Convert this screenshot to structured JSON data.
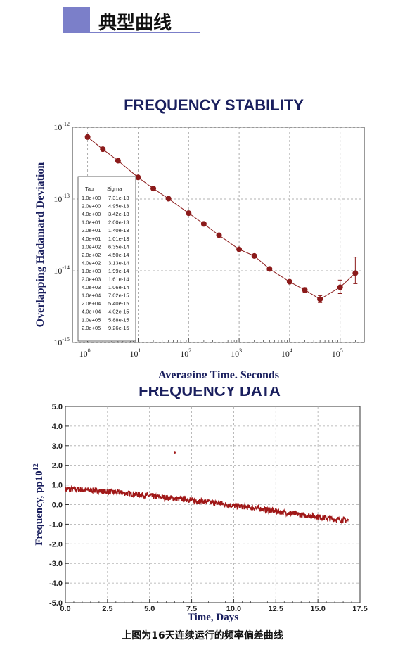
{
  "header": {
    "title": "典型曲线",
    "accent_color": "#7b7fc9"
  },
  "caption": "上图为16天连续运行的频率偏差曲线",
  "chart_data": [
    {
      "type": "scatter",
      "title": "FREQUENCY STABILITY",
      "xlabel": "Averaging Time, Seconds",
      "ylabel": "Overlapping Hadamard Deviation",
      "x_scale": "log",
      "y_scale": "log",
      "xlim": [
        0.5,
        300000
      ],
      "ylim": [
        1e-15,
        1e-12
      ],
      "x_ticks": [
        {
          "v": 1,
          "base": "10",
          "exp": "0"
        },
        {
          "v": 10,
          "base": "10",
          "exp": "1"
        },
        {
          "v": 100,
          "base": "10",
          "exp": "2"
        },
        {
          "v": 1000,
          "base": "10",
          "exp": "3"
        },
        {
          "v": 10000,
          "base": "10",
          "exp": "4"
        },
        {
          "v": 100000,
          "base": "10",
          "exp": "5"
        }
      ],
      "y_ticks": [
        {
          "v": 1e-12,
          "base": "10",
          "exp": "-12"
        },
        {
          "v": 1e-13,
          "base": "10",
          "exp": "-13"
        },
        {
          "v": 1e-14,
          "base": "10",
          "exp": "-14"
        },
        {
          "v": 1e-15,
          "base": "10",
          "exp": "-15"
        }
      ],
      "grid": "dashed at decades",
      "point_color": "#8b1a1a",
      "x": [
        1,
        2,
        4,
        10,
        20,
        40,
        100,
        200,
        400,
        1000,
        2000,
        4000,
        10000,
        20000,
        40000,
        100000,
        200000
      ],
      "y": [
        7.31e-13,
        4.95e-13,
        3.42e-13,
        2e-13,
        1.4e-13,
        1.01e-13,
        6.35e-14,
        4.5e-14,
        3.13e-14,
        1.99e-14,
        1.61e-14,
        1.06e-14,
        7.02e-15,
        5.4e-15,
        4.02e-15,
        5.88e-15,
        9.26e-15
      ],
      "error_low": [
        null,
        null,
        null,
        null,
        null,
        null,
        null,
        null,
        null,
        null,
        null,
        null,
        null,
        5e-15,
        3.6e-15,
        4.8e-15,
        6.6e-15
      ],
      "error_high": [
        null,
        null,
        null,
        null,
        null,
        null,
        null,
        null,
        null,
        null,
        null,
        null,
        null,
        5.8e-15,
        4.5e-15,
        7.4e-15,
        1.55e-14
      ],
      "table": {
        "headers": [
          "Tau",
          "Sigma"
        ],
        "rows": [
          [
            "1.0e+00",
            "7.31e-13"
          ],
          [
            "2.0e+00",
            "4.95e-13"
          ],
          [
            "4.0e+00",
            "3.42e-13"
          ],
          [
            "1.0e+01",
            "2.00e-13"
          ],
          [
            "2.0e+01",
            "1.40e-13"
          ],
          [
            "4.0e+01",
            "1.01e-13"
          ],
          [
            "1.0e+02",
            "6.35e-14"
          ],
          [
            "2.0e+02",
            "4.50e-14"
          ],
          [
            "4.0e+02",
            "3.13e-14"
          ],
          [
            "1.0e+03",
            "1.99e-14"
          ],
          [
            "2.0e+03",
            "1.61e-14"
          ],
          [
            "4.0e+03",
            "1.06e-14"
          ],
          [
            "1.0e+04",
            "7.02e-15"
          ],
          [
            "2.0e+04",
            "5.40e-15"
          ],
          [
            "4.0e+04",
            "4.02e-15"
          ],
          [
            "1.0e+05",
            "5.88e-15"
          ],
          [
            "2.0e+05",
            "9.26e-15"
          ]
        ]
      }
    },
    {
      "type": "line",
      "title": "FREQUENCY DATA",
      "xlabel": "Time, Days",
      "ylabel_main": "Frequency, pp10",
      "ylabel_sup": "12",
      "xlim": [
        0,
        17.5
      ],
      "ylim": [
        -5,
        5
      ],
      "x_ticks": [
        "0.0",
        "2.5",
        "5.0",
        "7.5",
        "10.0",
        "12.5",
        "15.0",
        "17.5"
      ],
      "y_ticks": [
        "5.0",
        "4.0",
        "3.0",
        "2.0",
        "1.0",
        "0.0",
        "-1.0",
        "-2.0",
        "-3.0",
        "-4.0",
        "-5.0"
      ],
      "grid": "dashed",
      "line_color": "#a01818",
      "series": [
        {
          "x": [
            0,
            1,
            2,
            3,
            4,
            5,
            6,
            7,
            8,
            9,
            10,
            11,
            12,
            13,
            14,
            15,
            16,
            16.8
          ],
          "y": [
            0.8,
            0.76,
            0.7,
            0.62,
            0.55,
            0.45,
            0.36,
            0.28,
            0.18,
            0.07,
            -0.05,
            -0.15,
            -0.27,
            -0.4,
            -0.52,
            -0.62,
            -0.75,
            -0.8
          ],
          "band": 0.14
        }
      ],
      "outlier": {
        "x": 6.5,
        "y": 2.65
      }
    }
  ]
}
